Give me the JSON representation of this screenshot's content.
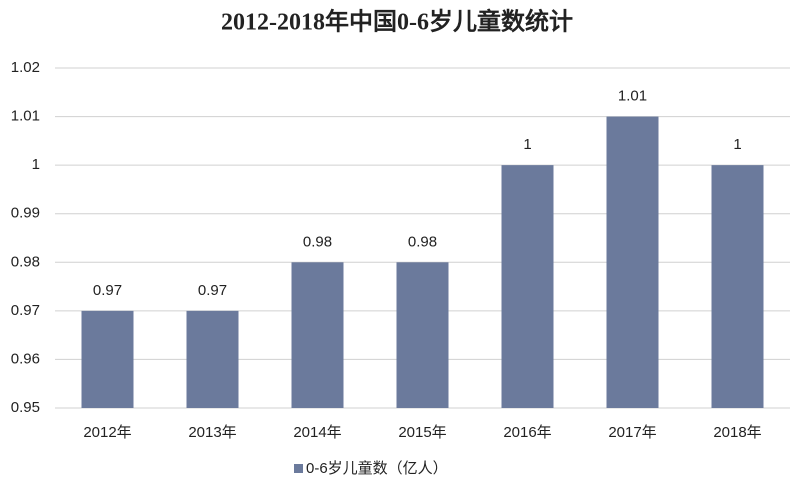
{
  "chart_data": {
    "type": "bar",
    "title": "2012-2018年中国0-6岁儿童数统计",
    "categories": [
      "2012年",
      "2013年",
      "2014年",
      "2015年",
      "2016年",
      "2017年",
      "2018年"
    ],
    "series": [
      {
        "name": "0-6岁儿童数（亿人）",
        "color": "#6b7a9c",
        "values": [
          0.97,
          0.97,
          0.98,
          0.98,
          1,
          1.01,
          1
        ]
      }
    ],
    "ylim": [
      0.95,
      1.02
    ],
    "yticks": [
      0.95,
      0.96,
      0.97,
      0.98,
      0.99,
      1,
      1.01,
      1.02
    ],
    "grid": true,
    "legend": "bottom"
  }
}
